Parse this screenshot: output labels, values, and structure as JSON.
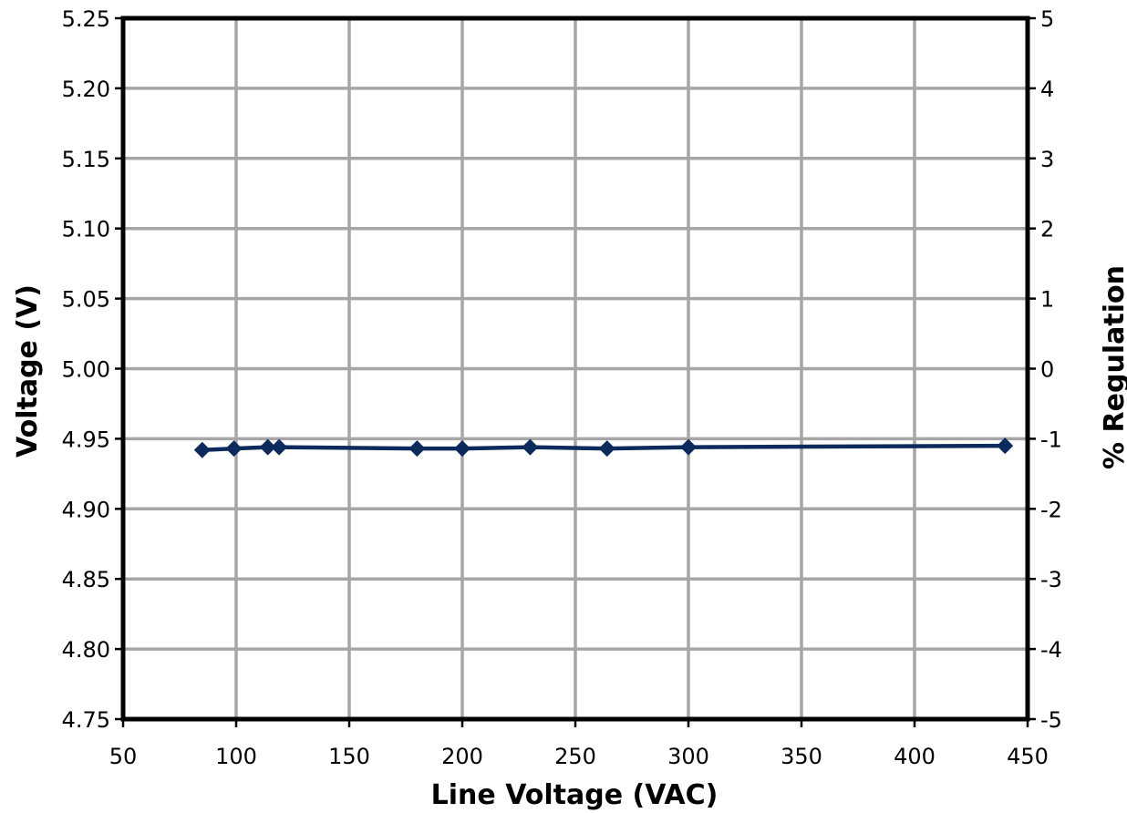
{
  "chart_data": {
    "type": "line",
    "title": "",
    "xlabel": "Line Voltage (VAC)",
    "ylabel": "Voltage (V)",
    "y2label": "% Regulation",
    "xlim": [
      50,
      450
    ],
    "ylim": [
      4.75,
      5.25
    ],
    "y2lim": [
      -5,
      5
    ],
    "x_ticks": [
      "50",
      "100",
      "150",
      "200",
      "250",
      "300",
      "350",
      "400",
      "450"
    ],
    "y_ticks": [
      "4.75",
      "4.80",
      "4.85",
      "4.90",
      "4.95",
      "5.00",
      "5.05",
      "5.10",
      "5.15",
      "5.20",
      "5.25"
    ],
    "y2_ticks": [
      "-5",
      "-4",
      "-3",
      "-2",
      "-1",
      "0",
      "1",
      "2",
      "3",
      "4",
      "5"
    ],
    "grid": true,
    "series": [
      {
        "color": "#0d2a5c",
        "marker": "diamond",
        "x": [
          85,
          99,
          114,
          119,
          180,
          200,
          230,
          264,
          300,
          440
        ],
        "y": [
          4.942,
          4.943,
          4.944,
          4.944,
          4.943,
          4.943,
          4.944,
          4.943,
          4.944,
          4.945
        ]
      }
    ]
  }
}
